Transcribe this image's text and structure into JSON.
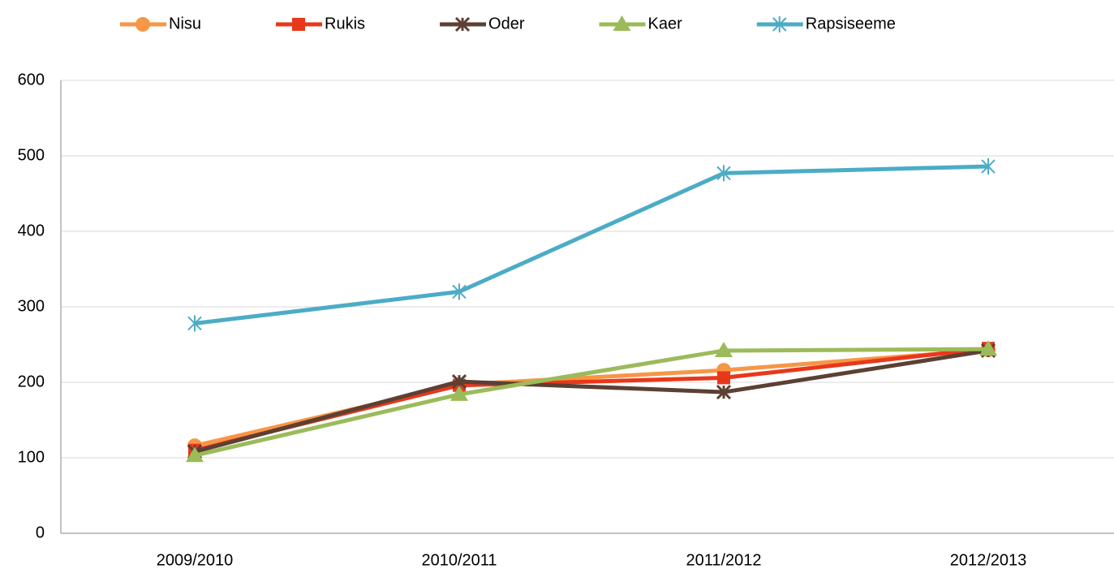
{
  "chart_data": {
    "type": "line",
    "categories": [
      "2009/2010",
      "2010/2011",
      "2011/2012",
      "2012/2013"
    ],
    "series": [
      {
        "name": "Nisu",
        "color": "#f79646",
        "marker": "circle",
        "values": [
          116,
          197,
          216,
          243
        ]
      },
      {
        "name": "Rukis",
        "color": "#e8381b",
        "marker": "square",
        "values": [
          110,
          196,
          206,
          245
        ]
      },
      {
        "name": "Oder",
        "color": "#5c4033",
        "marker": "star",
        "values": [
          108,
          201,
          187,
          242
        ]
      },
      {
        "name": "Kaer",
        "color": "#9bbb59",
        "marker": "triangle",
        "values": [
          103,
          184,
          242,
          244
        ]
      },
      {
        "name": "Rapsiseeme",
        "color": "#4bacc6",
        "marker": "asterisk",
        "values": [
          278,
          320,
          477,
          486
        ]
      }
    ],
    "ylim": [
      0,
      600
    ],
    "yticks": [
      0,
      100,
      200,
      300,
      400,
      500,
      600
    ],
    "grid": true,
    "legend": "top"
  }
}
